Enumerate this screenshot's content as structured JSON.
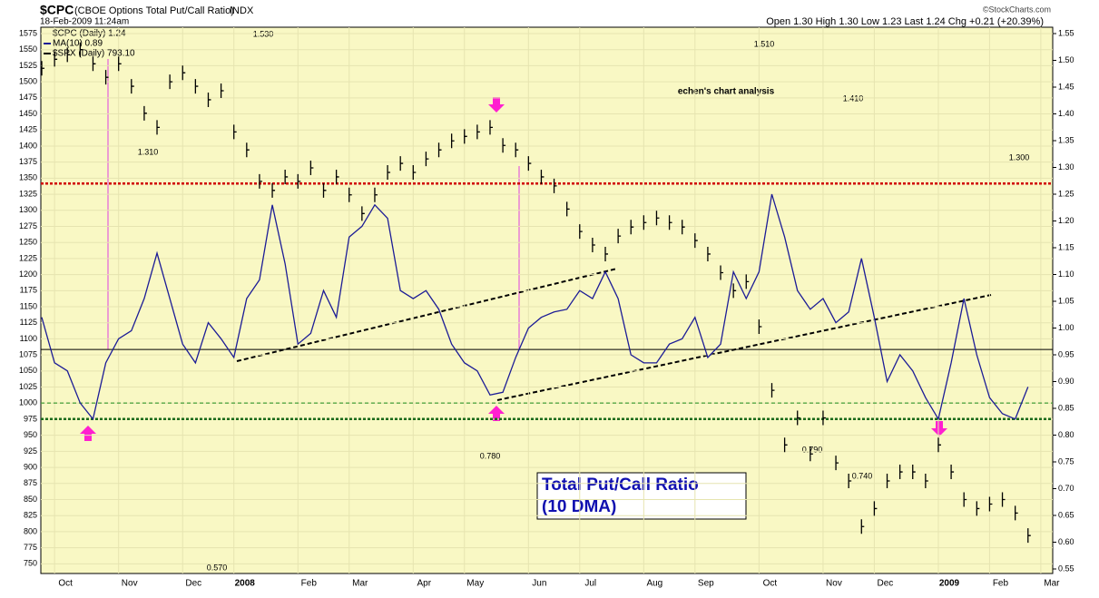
{
  "chart_data": {
    "type": "line",
    "symbol": "$CPC",
    "title": "(CBOE Options Total Put/Call Ratio)",
    "exchange": "INDX",
    "date": "18-Feb-2009 11:24am",
    "source": "©StockCharts.com",
    "quote": "Open 1.30 High 1.30 Low 1.23 Last 1.24 Chg +0.21 (+20.39%)",
    "legend_extra": "$CPC (Daily) 1.24",
    "annotations": [
      "1.530",
      "1.310",
      "0.780",
      "0.570",
      "1.510",
      "1.410",
      "1.300",
      "0.790",
      "0.740",
      "echen's chart analysis",
      "Total Put/Call Ratio",
      "(10 DMA)"
    ],
    "categories": [
      null,
      "Oct",
      null,
      null,
      null,
      null,
      "Nov",
      null,
      null,
      null,
      null,
      "Dec",
      null,
      null,
      null,
      "2008",
      null,
      null,
      null,
      null,
      "Feb",
      null,
      null,
      null,
      "Mar",
      null,
      null,
      null,
      null,
      "Apr",
      null,
      null,
      null,
      "May",
      null,
      null,
      null,
      null,
      "Jun",
      null,
      null,
      null,
      "Jul",
      null,
      null,
      null,
      null,
      "Aug",
      null,
      null,
      null,
      "Sep",
      null,
      null,
      null,
      null,
      "Oct",
      null,
      null,
      null,
      null,
      "Nov",
      null,
      null,
      null,
      "Dec",
      null,
      null,
      null,
      null,
      "2009",
      null,
      null,
      null,
      "Feb",
      null,
      null,
      null,
      "Mar"
    ],
    "series": [
      {
        "name": "MA(10) 0.89",
        "color": "#1c1c96",
        "axis": "y2",
        "values": [
          1.02,
          0.935,
          0.92,
          0.86,
          0.83,
          0.935,
          0.98,
          0.995,
          1.055,
          1.14,
          1.055,
          0.97,
          0.935,
          1.01,
          0.98,
          0.945,
          1.055,
          1.09,
          1.23,
          1.12,
          0.97,
          0.99,
          1.07,
          1.02,
          1.17,
          1.19,
          1.23,
          1.205,
          1.07,
          1.055,
          1.07,
          1.035,
          0.97,
          0.935,
          0.92,
          0.875,
          0.88,
          0.945,
          1.0,
          1.02,
          1.03,
          1.035,
          1.07,
          1.055,
          1.105,
          1.055,
          0.95,
          0.935,
          0.935,
          0.97,
          0.98,
          1.02,
          0.945,
          0.97,
          1.105,
          1.055,
          1.105,
          1.25,
          1.17,
          1.07,
          1.035,
          1.055,
          1.01,
          1.03,
          1.13,
          1.02,
          0.9,
          0.95,
          0.92,
          0.87,
          0.83,
          0.935,
          1.055,
          0.95,
          0.87,
          0.84,
          0.83,
          0.89,
          null
        ]
      },
      {
        "name": "$SPX (Daily) 793.10",
        "color": "#000000",
        "axis": "y",
        "values": [
          1521,
          1535,
          1542,
          1550,
          1528,
          1507,
          1528,
          1493,
          1451,
          1429,
          1500,
          1514,
          1493,
          1472,
          1486,
          1422,
          1394,
          1345,
          1331,
          1352,
          1345,
          1366,
          1331,
          1352,
          1324,
          1295,
          1324,
          1359,
          1373,
          1359,
          1380,
          1394,
          1408,
          1415,
          1422,
          1429,
          1401,
          1394,
          1373,
          1352,
          1338,
          1302,
          1267,
          1246,
          1232,
          1260,
          1274,
          1281,
          1288,
          1281,
          1274,
          1253,
          1232,
          1203,
          1175,
          1189,
          1119,
          1020,
          935,
          977,
          921,
          977,
          907,
          879,
          808,
          836,
          879,
          893,
          893,
          879,
          935,
          893,
          850,
          836,
          843,
          850,
          829,
          794,
          null
        ]
      }
    ],
    "hlines": [
      {
        "value": 1.27,
        "color": "#d00000",
        "style": "dotted"
      },
      {
        "value": 0.96,
        "color": "#000000",
        "style": "solid"
      },
      {
        "value": 0.86,
        "color": "#1a8a1a",
        "style": "dashed"
      },
      {
        "value": 0.83,
        "color": "#1a6a1a",
        "style": "dotted"
      }
    ],
    "ylim": [
      742,
      1575
    ],
    "yticks": [
      750,
      775,
      800,
      825,
      850,
      875,
      900,
      925,
      950,
      975,
      1000,
      1025,
      1050,
      1075,
      1100,
      1125,
      1150,
      1175,
      1200,
      1225,
      1250,
      1275,
      1300,
      1325,
      1350,
      1375,
      1400,
      1425,
      1450,
      1475,
      1500,
      1525,
      1550,
      1575
    ],
    "y2lim": [
      0.55,
      1.55
    ],
    "y2ticks": [
      0.55,
      {
        "value": 0.6,
        "label": "0.60"
      },
      0.65,
      {
        "value": 0.7,
        "label": "0.70"
      },
      0.75,
      {
        "value": 0.8,
        "label": "0.80"
      },
      0.85,
      {
        "value": 0.9,
        "label": "0.90"
      },
      0.95,
      {
        "value": 1,
        "label": "1.00"
      },
      1.05,
      {
        "value": 1.1,
        "label": "1.10"
      },
      1.15,
      {
        "value": 1.2,
        "label": "1.20"
      },
      1.25,
      {
        "value": 1.3,
        "label": "1.30"
      },
      1.35,
      {
        "value": 1.4,
        "label": "1.40"
      },
      1.45,
      {
        "value": 1.5,
        "label": "1.50"
      },
      1.55
    ],
    "grid": true
  }
}
